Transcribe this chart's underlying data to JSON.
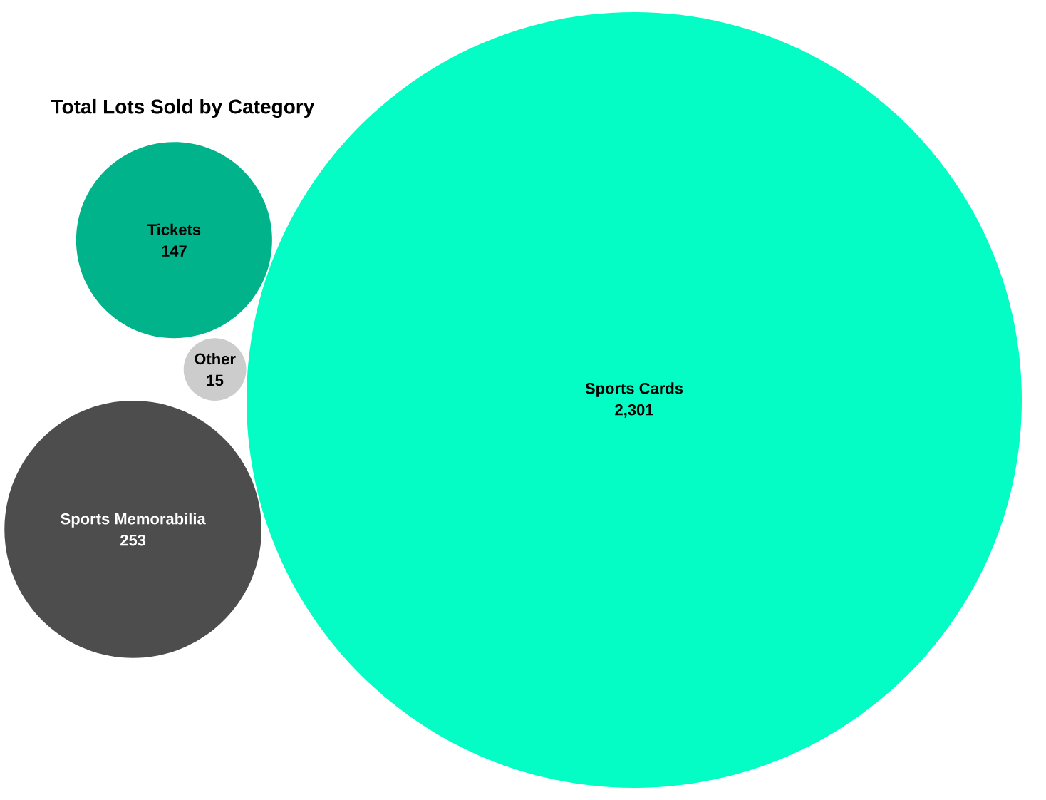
{
  "chart_data": {
    "type": "other",
    "title": "Total Lots Sold by Category",
    "categories": [
      "Tickets",
      "Other",
      "Sports Memorabilia",
      "Sports Cards"
    ],
    "values": [
      147,
      15,
      253,
      2301
    ],
    "value_labels": [
      "147",
      "15",
      "253",
      "2,301"
    ],
    "colors": [
      "#00b38a",
      "#cccccc",
      "#4d4d4d",
      "#03fdc4"
    ]
  }
}
